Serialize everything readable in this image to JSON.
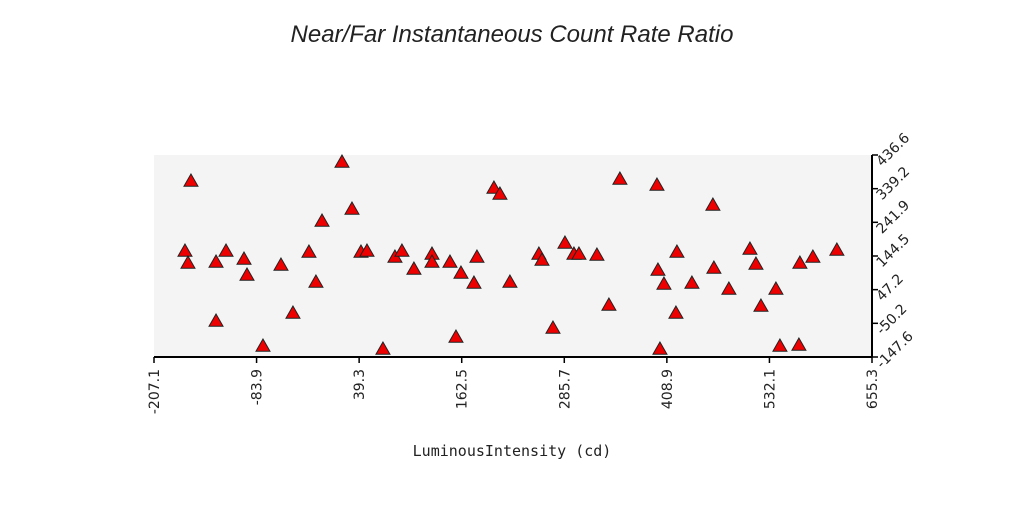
{
  "chart_data": {
    "type": "scatter",
    "title": "Near/Far Instantaneous Count Rate Ratio",
    "x_label": "LuminousIntensity (cd)",
    "xlim": [
      -207.1,
      655.3
    ],
    "xticks": [
      -207.1,
      -83.9,
      39.3,
      162.5,
      285.7,
      408.9,
      532.1,
      655.3
    ],
    "ylim": [
      -147.6,
      436.6
    ],
    "yticks": [
      -147.6,
      -50.2,
      47.2,
      144.5,
      241.9,
      339.2,
      436.6
    ],
    "series": [
      {
        "color": "#ee0000",
        "marker": "triangle",
        "x": [
          -169.9,
          -166.3,
          -162.7,
          -132.6,
          -132.6,
          -120.6,
          -99.0,
          -95.4,
          -76.2,
          -54.6,
          -40.2,
          -21.0,
          -12.6,
          -5.3,
          18.7,
          30.7,
          41.5,
          48.7,
          67.9,
          82.3,
          90.7,
          105.1,
          126.8,
          126.8,
          148.4,
          155.6,
          161.6,
          177.2,
          180.8,
          201.2,
          208.4,
          220.4,
          255.2,
          258.9,
          272.1,
          286.5,
          297.3,
          303.3,
          324.9,
          339.3,
          352.5,
          397.0,
          398.2,
          400.6,
          405.4,
          419.8,
          421.0,
          439.0,
          464.2,
          465.4,
          483.4,
          508.7,
          515.9,
          521.9,
          539.9,
          544.7,
          567.5,
          568.7,
          584.3,
          613.1
        ],
        "values": [
          158.9,
          124.2,
          361.4,
          127.1,
          -43.5,
          158.9,
          135.8,
          89.5,
          -115.8,
          118.4,
          -20.4,
          156.0,
          69.3,
          245.7,
          416.3,
          280.4,
          156.0,
          158.9,
          -124.5,
          141.6,
          158.9,
          106.9,
          150.3,
          127.1,
          127.1,
          -89.8,
          95.3,
          66.4,
          141.6,
          341.1,
          323.8,
          69.3,
          150.3,
          132.9,
          -63.7,
          182.1,
          150.3,
          150.3,
          147.4,
          2.8,
          367.2,
          349.8,
          104.0,
          -124.5,
          63.5,
          -20.4,
          156.0,
          66.4,
          292.0,
          109.8,
          49.0,
          164.7,
          121.3,
          0.0,
          49.0,
          -115.8,
          -112.9,
          124.2,
          141.6,
          161.8
        ]
      }
    ]
  }
}
